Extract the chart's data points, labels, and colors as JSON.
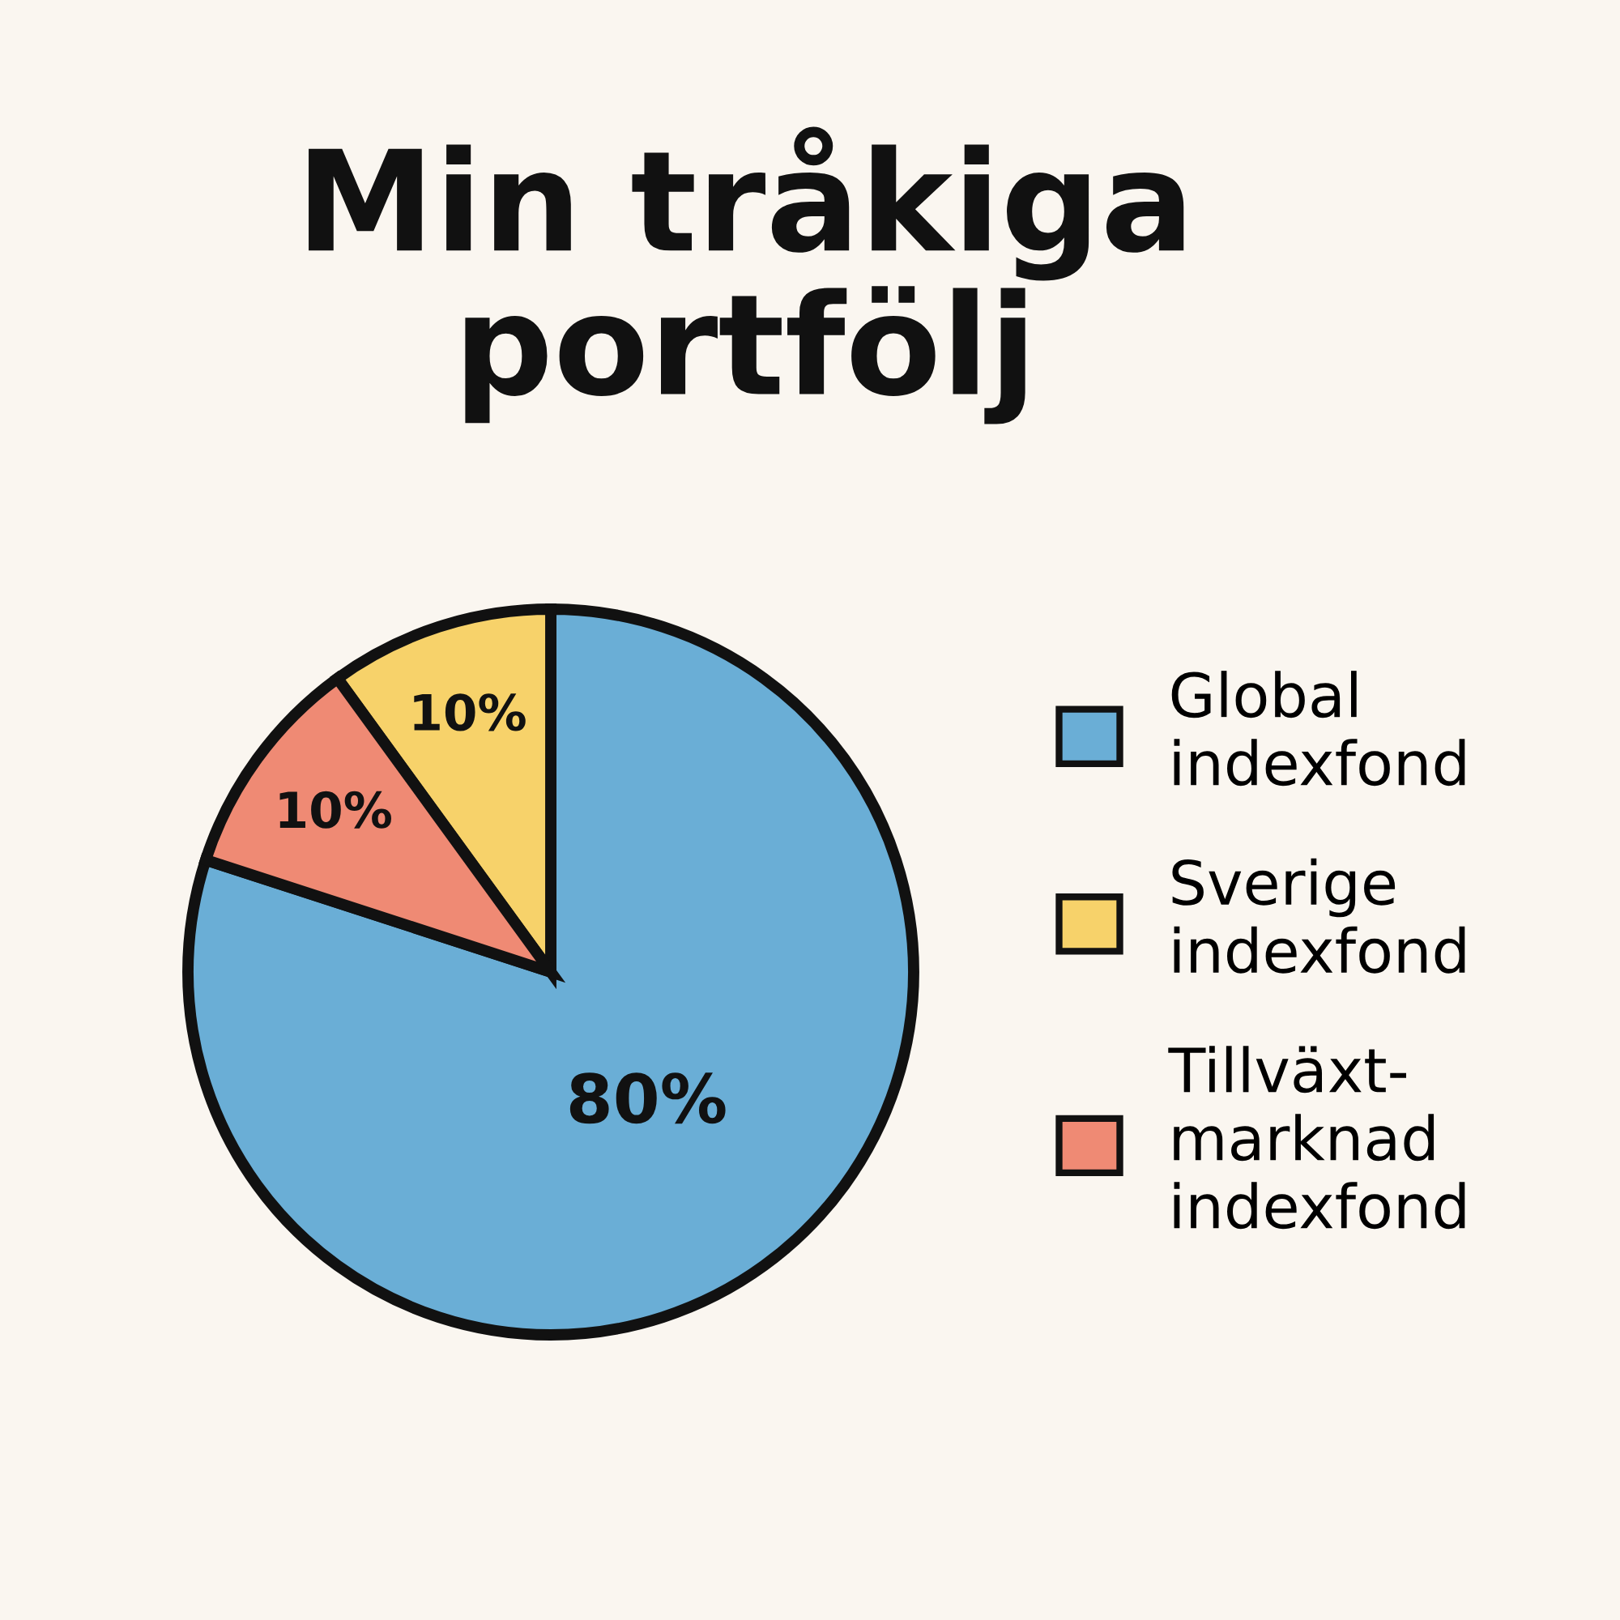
{
  "chart_data": {
    "type": "pie",
    "title": "Min tråkiga\nportfölj",
    "categories": [
      "Global\nindexfond",
      "Sverige\nindexfond",
      "Tillväxt-\nmarknad\nindexfond"
    ],
    "values": [
      80,
      10,
      10
    ],
    "colors": [
      "#6aaed6",
      "#f7d26a",
      "#ef8a74"
    ],
    "value_labels": [
      "80%",
      "10%",
      "10%"
    ],
    "legend": "right"
  }
}
